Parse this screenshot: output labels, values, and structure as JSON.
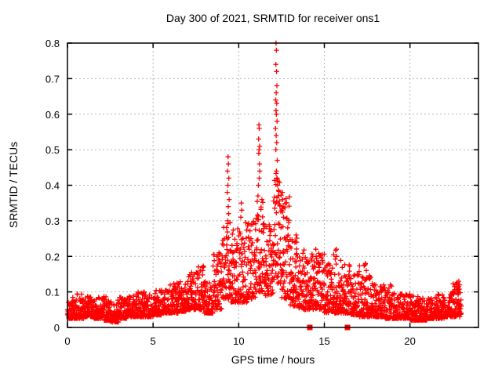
{
  "chart_data": {
    "type": "scatter",
    "title": "Day 300 of 2021, SRMTID for receiver ons1",
    "xlabel": "GPS time / hours",
    "ylabel": "SRMTID / TECUs",
    "xlim": [
      0,
      24
    ],
    "ylim": [
      0,
      0.8
    ],
    "xtick_values": [
      0,
      5,
      10,
      15,
      20
    ],
    "xtick_labels": [
      "0",
      "5",
      "10",
      "15",
      "20"
    ],
    "ytick_values": [
      0,
      0.1,
      0.2,
      0.3,
      0.4,
      0.5,
      0.6,
      0.7,
      0.8
    ],
    "ytick_labels": [
      "0",
      "0.1",
      "0.2",
      "0.3",
      "0.4",
      "0.5",
      "0.6",
      "0.7",
      "0.8"
    ],
    "grid": true,
    "legend": "none",
    "marker": "plus",
    "point_color": "#ff0000",
    "square_marker_color": "#ff0000",
    "grid_color": "#b3b3b3",
    "axis_color": "#000000",
    "background_color": "#ffffff",
    "data_time_range_hours": [
      0,
      23
    ],
    "band_segments": [
      [
        0.0,
        0.5,
        60,
        0.025,
        0.085,
        2.2
      ],
      [
        0.5,
        1.0,
        60,
        0.025,
        0.095,
        2.2
      ],
      [
        1.0,
        1.5,
        60,
        0.03,
        0.09,
        2.2
      ],
      [
        1.5,
        2.0,
        60,
        0.025,
        0.085,
        2.2
      ],
      [
        2.0,
        2.5,
        60,
        0.02,
        0.09,
        2.2
      ],
      [
        2.5,
        3.0,
        60,
        0.015,
        0.08,
        2.2
      ],
      [
        3.0,
        3.5,
        60,
        0.025,
        0.085,
        2.2
      ],
      [
        3.5,
        4.0,
        60,
        0.03,
        0.09,
        2.2
      ],
      [
        4.0,
        4.5,
        60,
        0.03,
        0.1,
        2.2
      ],
      [
        4.5,
        5.0,
        60,
        0.03,
        0.095,
        2.2
      ],
      [
        5.0,
        5.5,
        60,
        0.035,
        0.105,
        2.1
      ],
      [
        5.5,
        6.0,
        60,
        0.04,
        0.11,
        2.1
      ],
      [
        6.0,
        6.5,
        60,
        0.04,
        0.125,
        2.0
      ],
      [
        6.5,
        7.0,
        60,
        0.045,
        0.13,
        2.0
      ],
      [
        7.0,
        7.5,
        60,
        0.05,
        0.155,
        1.9
      ],
      [
        7.5,
        8.0,
        60,
        0.05,
        0.175,
        1.9
      ],
      [
        8.0,
        8.5,
        60,
        0.04,
        0.13,
        2.0
      ],
      [
        8.5,
        9.0,
        60,
        0.05,
        0.21,
        1.9
      ],
      [
        9.0,
        9.5,
        60,
        0.08,
        0.3,
        1.6
      ],
      [
        9.5,
        10.0,
        60,
        0.07,
        0.28,
        1.8
      ],
      [
        10.0,
        10.5,
        60,
        0.07,
        0.3,
        1.8
      ],
      [
        10.5,
        11.0,
        60,
        0.08,
        0.3,
        1.7
      ],
      [
        11.0,
        11.5,
        60,
        0.1,
        0.38,
        1.7
      ],
      [
        11.5,
        12.0,
        60,
        0.09,
        0.3,
        1.7
      ],
      [
        12.0,
        12.5,
        60,
        0.12,
        0.45,
        1.5
      ],
      [
        12.5,
        13.0,
        60,
        0.08,
        0.38,
        1.7
      ],
      [
        13.0,
        13.5,
        60,
        0.06,
        0.26,
        1.8
      ],
      [
        13.5,
        14.0,
        60,
        0.05,
        0.22,
        1.9
      ],
      [
        14.0,
        14.5,
        60,
        0.05,
        0.22,
        1.9
      ],
      [
        14.5,
        15.0,
        60,
        0.05,
        0.21,
        1.9
      ],
      [
        15.0,
        15.5,
        60,
        0.04,
        0.18,
        2.0
      ],
      [
        15.5,
        16.0,
        60,
        0.04,
        0.22,
        2.0
      ],
      [
        16.0,
        16.5,
        60,
        0.04,
        0.18,
        2.0
      ],
      [
        16.5,
        17.0,
        60,
        0.035,
        0.16,
        2.0
      ],
      [
        17.0,
        17.5,
        60,
        0.03,
        0.18,
        2.0
      ],
      [
        17.5,
        18.0,
        60,
        0.03,
        0.15,
        2.0
      ],
      [
        18.0,
        18.5,
        60,
        0.03,
        0.12,
        2.1
      ],
      [
        18.5,
        19.0,
        60,
        0.025,
        0.12,
        2.1
      ],
      [
        19.0,
        19.5,
        60,
        0.025,
        0.1,
        2.2
      ],
      [
        19.5,
        20.0,
        60,
        0.025,
        0.095,
        2.2
      ],
      [
        20.0,
        20.5,
        60,
        0.02,
        0.09,
        2.2
      ],
      [
        20.5,
        21.0,
        60,
        0.02,
        0.085,
        2.2
      ],
      [
        21.0,
        21.5,
        60,
        0.025,
        0.09,
        2.2
      ],
      [
        21.5,
        22.0,
        60,
        0.025,
        0.095,
        2.2
      ],
      [
        22.0,
        22.5,
        60,
        0.03,
        0.1,
        2.1
      ],
      [
        22.5,
        23.0,
        60,
        0.03,
        0.13,
        2.0
      ]
    ],
    "spike_points": [
      [
        12.18,
        0.8
      ],
      [
        12.2,
        0.78
      ],
      [
        12.17,
        0.74
      ],
      [
        12.21,
        0.72
      ],
      [
        12.23,
        0.68
      ],
      [
        12.19,
        0.66
      ],
      [
        12.16,
        0.64
      ],
      [
        12.22,
        0.63
      ],
      [
        12.18,
        0.61
      ],
      [
        12.2,
        0.6
      ],
      [
        12.24,
        0.58
      ],
      [
        12.15,
        0.56
      ],
      [
        12.19,
        0.54
      ],
      [
        12.22,
        0.52
      ],
      [
        12.17,
        0.5
      ],
      [
        12.25,
        0.47
      ],
      [
        12.2,
        0.44
      ],
      [
        12.23,
        0.42
      ],
      [
        12.28,
        0.4
      ],
      [
        12.3,
        0.37
      ],
      [
        11.18,
        0.57
      ],
      [
        11.2,
        0.56
      ],
      [
        11.16,
        0.53
      ],
      [
        11.22,
        0.51
      ],
      [
        11.19,
        0.5
      ],
      [
        11.17,
        0.49
      ],
      [
        11.21,
        0.46
      ],
      [
        11.23,
        0.44
      ],
      [
        11.2,
        0.42
      ],
      [
        11.15,
        0.4
      ],
      [
        9.38,
        0.48
      ],
      [
        9.4,
        0.46
      ],
      [
        9.35,
        0.44
      ],
      [
        9.42,
        0.42
      ],
      [
        9.37,
        0.4
      ],
      [
        9.33,
        0.38
      ],
      [
        9.44,
        0.36
      ],
      [
        9.39,
        0.34
      ],
      [
        9.41,
        0.32
      ],
      [
        9.36,
        0.3
      ],
      [
        10.15,
        0.35
      ],
      [
        10.18,
        0.33
      ],
      [
        10.12,
        0.31
      ],
      [
        12.55,
        0.38
      ],
      [
        12.57,
        0.36
      ],
      [
        12.6,
        0.34
      ],
      [
        12.52,
        0.33
      ],
      [
        12.62,
        0.31
      ],
      [
        13.35,
        0.26
      ],
      [
        13.38,
        0.24
      ],
      [
        14.5,
        0.22
      ],
      [
        14.52,
        0.2
      ],
      [
        15.7,
        0.22
      ],
      [
        15.72,
        0.2
      ],
      [
        17.4,
        0.18
      ],
      [
        17.45,
        0.16
      ],
      [
        8.85,
        0.21
      ],
      [
        8.88,
        0.19
      ],
      [
        7.95,
        0.17
      ],
      [
        7.9,
        0.16
      ],
      [
        7.25,
        0.155
      ],
      [
        6.4,
        0.125
      ],
      [
        18.85,
        0.12
      ],
      [
        22.85,
        0.13
      ],
      [
        22.9,
        0.12
      ]
    ],
    "square_markers": [
      [
        14.15,
        0
      ],
      [
        16.35,
        0
      ]
    ]
  }
}
